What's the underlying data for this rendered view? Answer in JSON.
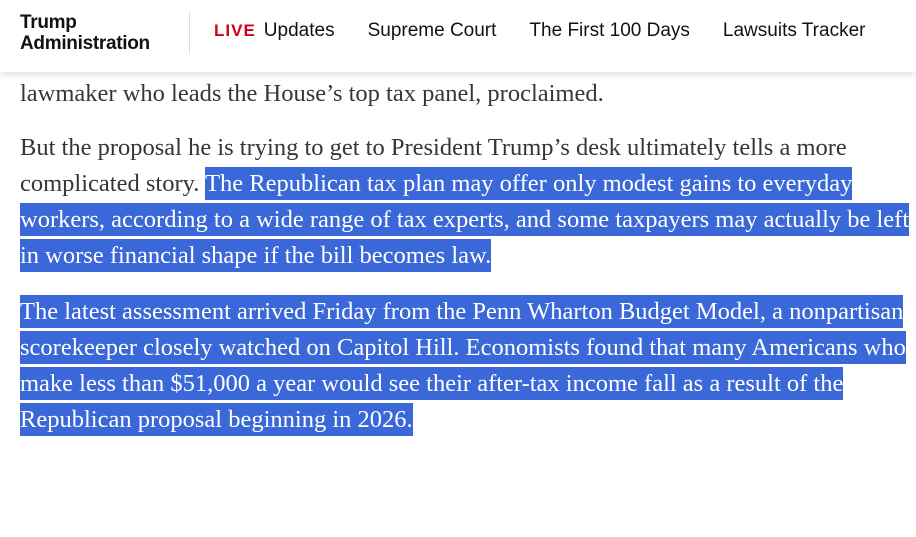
{
  "header": {
    "section_title_line1": "Trump",
    "section_title_line2": "Administration",
    "nav": {
      "live_badge": "LIVE",
      "items": [
        "Updates",
        "Supreme Court",
        "The First 100 Days",
        "Lawsuits Tracker"
      ]
    }
  },
  "article": {
    "partial_line": "lawmaker who leads the House’s top tax panel, proclaimed.",
    "paragraph2": {
      "plain": "But the proposal he is trying to get to President Trump’s desk ultimately tells a more complicated story. ",
      "selected": "The Republican tax plan may offer only modest gains to everyday workers, according to a wide range of tax experts, and some taxpayers may actually be left in worse financial shape if the bill becomes law."
    },
    "paragraph3": {
      "selected": "The latest assessment arrived Friday from the Penn Wharton Budget Model, a nonpartisan scorekeeper closely watched on Capitol Hill. Economists found that many Americans who make less than $51,000 a year would see their after-tax income fall as a result of the Republican proposal beginning in 2026."
    }
  },
  "colors": {
    "selection": "#3a68d8",
    "live": "#d0021b",
    "text": "#363636"
  }
}
